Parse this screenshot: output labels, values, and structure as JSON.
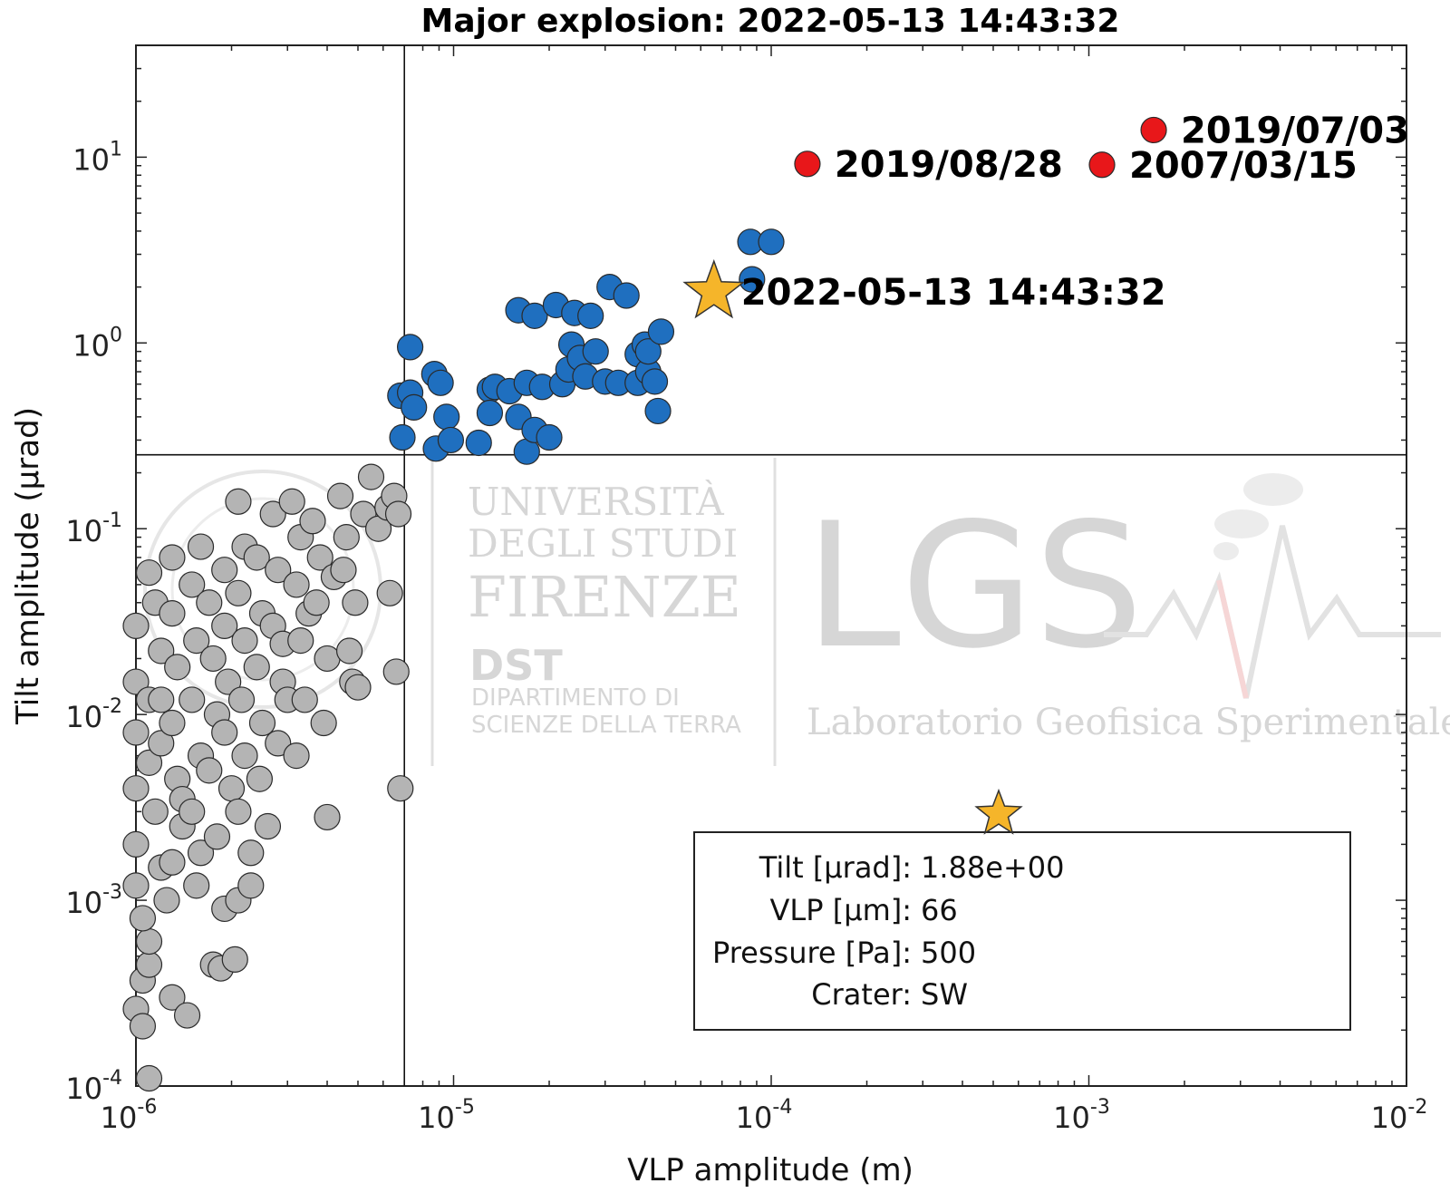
{
  "chart_data": {
    "type": "scatter",
    "title": "Major explosion: 2022-05-13 14:43:32",
    "xlabel": "VLP amplitude (m)",
    "ylabel": "Tilt amplitude (μrad)",
    "xscale": "log",
    "yscale": "log",
    "xlim": [
      1e-06,
      0.01
    ],
    "ylim": [
      0.0001,
      40
    ],
    "x_ticks": [
      {
        "base": "10",
        "exp": "-6",
        "value": 1e-06
      },
      {
        "base": "10",
        "exp": "-5",
        "value": 1e-05
      },
      {
        "base": "10",
        "exp": "-4",
        "value": 0.0001
      },
      {
        "base": "10",
        "exp": "-3",
        "value": 0.001
      },
      {
        "base": "10",
        "exp": "-2",
        "value": 0.01
      }
    ],
    "y_ticks": [
      {
        "base": "10",
        "exp": "-4",
        "value": 0.0001
      },
      {
        "base": "10",
        "exp": "-3",
        "value": 0.001
      },
      {
        "base": "10",
        "exp": "-2",
        "value": 0.01
      },
      {
        "base": "10",
        "exp": "-1",
        "value": 0.1
      },
      {
        "base": "10",
        "exp": "0",
        "value": 1
      },
      {
        "base": "10",
        "exp": "1",
        "value": 10
      }
    ],
    "thresholds": {
      "x": 7e-06,
      "y": 0.25
    },
    "colors": {
      "minor": "#b4b4b4",
      "major": "#1f6fbf",
      "paroxysm": "#e8171a",
      "star": "#f5b52a",
      "edge": "#2a2a2a"
    },
    "series": [
      {
        "color": "#b4b4b4",
        "points": [
          [
            1e-06,
            0.03
          ],
          [
            1e-06,
            0.015
          ],
          [
            1e-06,
            0.008
          ],
          [
            1e-06,
            0.004
          ],
          [
            1e-06,
            0.002
          ],
          [
            1e-06,
            0.0012
          ],
          [
            1e-06,
            0.00026
          ],
          [
            1.05e-06,
            0.00021
          ],
          [
            1.1e-06,
            0.00011
          ],
          [
            1.05e-06,
            0.00037
          ],
          [
            1.1e-06,
            0.00045
          ],
          [
            1.1e-06,
            0.0006
          ],
          [
            1.05e-06,
            0.0008
          ],
          [
            1.1e-06,
            0.0055
          ],
          [
            1.1e-06,
            0.058
          ],
          [
            1.15e-06,
            0.04
          ],
          [
            1.2e-06,
            0.022
          ],
          [
            1.1e-06,
            0.012
          ],
          [
            1.2e-06,
            0.007
          ],
          [
            1.15e-06,
            0.003
          ],
          [
            1.2e-06,
            0.0015
          ],
          [
            1.25e-06,
            0.001
          ],
          [
            1.2e-06,
            0.012
          ],
          [
            1.3e-06,
            0.07
          ],
          [
            1.3e-06,
            0.035
          ],
          [
            1.35e-06,
            0.018
          ],
          [
            1.3e-06,
            0.009
          ],
          [
            1.35e-06,
            0.0045
          ],
          [
            1.4e-06,
            0.0025
          ],
          [
            1.3e-06,
            0.0016
          ],
          [
            1.3e-06,
            0.0003
          ],
          [
            1.4e-06,
            0.0035
          ],
          [
            1.5e-06,
            0.05
          ],
          [
            1.55e-06,
            0.025
          ],
          [
            1.5e-06,
            0.012
          ],
          [
            1.6e-06,
            0.006
          ],
          [
            1.5e-06,
            0.003
          ],
          [
            1.6e-06,
            0.0018
          ],
          [
            1.55e-06,
            0.0012
          ],
          [
            1.45e-06,
            0.00024
          ],
          [
            1.6e-06,
            0.08
          ],
          [
            1.7e-06,
            0.04
          ],
          [
            1.75e-06,
            0.02
          ],
          [
            1.8e-06,
            0.01
          ],
          [
            1.7e-06,
            0.005
          ],
          [
            1.8e-06,
            0.0022
          ],
          [
            1.75e-06,
            0.00045
          ],
          [
            1.9e-06,
            0.06
          ],
          [
            1.9e-06,
            0.03
          ],
          [
            1.95e-06,
            0.015
          ],
          [
            1.9e-06,
            0.008
          ],
          [
            2e-06,
            0.004
          ],
          [
            1.9e-06,
            0.0009
          ],
          [
            1.85e-06,
            0.00043
          ],
          [
            2.1e-06,
            0.14
          ],
          [
            2.2e-06,
            0.08
          ],
          [
            2.1e-06,
            0.045
          ],
          [
            2.2e-06,
            0.025
          ],
          [
            2.15e-06,
            0.012
          ],
          [
            2.2e-06,
            0.006
          ],
          [
            2.1e-06,
            0.003
          ],
          [
            2.1e-06,
            0.001
          ],
          [
            2.05e-06,
            0.00048
          ],
          [
            2.3e-06,
            0.0012
          ],
          [
            2.4e-06,
            0.07
          ],
          [
            2.5e-06,
            0.035
          ],
          [
            2.4e-06,
            0.018
          ],
          [
            2.5e-06,
            0.009
          ],
          [
            2.45e-06,
            0.0045
          ],
          [
            2.6e-06,
            0.0025
          ],
          [
            2.3e-06,
            0.0018
          ],
          [
            2.7e-06,
            0.12
          ],
          [
            2.8e-06,
            0.06
          ],
          [
            2.7e-06,
            0.03
          ],
          [
            2.9e-06,
            0.015
          ],
          [
            2.8e-06,
            0.007
          ],
          [
            3e-06,
            0.012
          ],
          [
            2.9e-06,
            0.024
          ],
          [
            3.1e-06,
            0.14
          ],
          [
            3.3e-06,
            0.09
          ],
          [
            3.2e-06,
            0.05
          ],
          [
            3.3e-06,
            0.025
          ],
          [
            3.4e-06,
            0.012
          ],
          [
            3.2e-06,
            0.006
          ],
          [
            3.5e-06,
            0.035
          ],
          [
            3.6e-06,
            0.11
          ],
          [
            3.8e-06,
            0.07
          ],
          [
            3.7e-06,
            0.04
          ],
          [
            4e-06,
            0.02
          ],
          [
            3.9e-06,
            0.009
          ],
          [
            4e-06,
            0.0028
          ],
          [
            4.2e-06,
            0.055
          ],
          [
            4.4e-06,
            0.15
          ],
          [
            4.6e-06,
            0.09
          ],
          [
            4.5e-06,
            0.06
          ],
          [
            4.7e-06,
            0.022
          ],
          [
            4.8e-06,
            0.015
          ],
          [
            5e-06,
            0.014
          ],
          [
            4.9e-06,
            0.04
          ],
          [
            5.5e-06,
            0.19
          ],
          [
            5.2e-06,
            0.12
          ],
          [
            5.8e-06,
            0.1
          ],
          [
            6.2e-06,
            0.13
          ],
          [
            6.5e-06,
            0.15
          ],
          [
            6.7e-06,
            0.12
          ],
          [
            6.3e-06,
            0.045
          ],
          [
            6.6e-06,
            0.017
          ],
          [
            6.8e-06,
            0.004
          ]
        ]
      },
      {
        "color": "#1f6fbf",
        "points": [
          [
            6.8e-06,
            0.52
          ],
          [
            6.9e-06,
            0.31
          ],
          [
            7.3e-06,
            0.95
          ],
          [
            7.3e-06,
            0.54
          ],
          [
            7.5e-06,
            0.45
          ],
          [
            8.7e-06,
            0.68
          ],
          [
            8.8e-06,
            0.27
          ],
          [
            9.1e-06,
            0.61
          ],
          [
            9.5e-06,
            0.4
          ],
          [
            9.8e-06,
            0.3
          ],
          [
            1.2e-05,
            0.29
          ],
          [
            1.3e-05,
            0.56
          ],
          [
            1.3e-05,
            0.42
          ],
          [
            1.35e-05,
            0.58
          ],
          [
            1.5e-05,
            0.55
          ],
          [
            1.6e-05,
            0.4
          ],
          [
            1.6e-05,
            1.5
          ],
          [
            1.7e-05,
            0.61
          ],
          [
            1.7e-05,
            0.26
          ],
          [
            1.8e-05,
            1.4
          ],
          [
            1.8e-05,
            0.34
          ],
          [
            1.9e-05,
            0.58
          ],
          [
            2e-05,
            0.31
          ],
          [
            2.1e-05,
            1.6
          ],
          [
            2.2e-05,
            0.6
          ],
          [
            2.3e-05,
            0.72
          ],
          [
            2.35e-05,
            0.98
          ],
          [
            2.4e-05,
            1.45
          ],
          [
            2.5e-05,
            0.83
          ],
          [
            2.6e-05,
            0.66
          ],
          [
            2.7e-05,
            1.4
          ],
          [
            2.8e-05,
            0.9
          ],
          [
            3e-05,
            0.62
          ],
          [
            3.1e-05,
            2.0
          ],
          [
            3.3e-05,
            0.61
          ],
          [
            3.5e-05,
            1.8
          ],
          [
            3.8e-05,
            0.87
          ],
          [
            3.8e-05,
            0.61
          ],
          [
            4e-05,
            0.98
          ],
          [
            4.1e-05,
            0.7
          ],
          [
            4.1e-05,
            0.9
          ],
          [
            4.3e-05,
            0.62
          ],
          [
            4.4e-05,
            0.43
          ],
          [
            4.5e-05,
            1.15
          ],
          [
            8.6e-05,
            3.5
          ],
          [
            8.7e-05,
            2.2
          ],
          [
            0.0001,
            3.5
          ]
        ]
      },
      {
        "color": "#e8171a",
        "points": [
          [
            0.00013,
            9.2
          ],
          [
            0.0011,
            9.1
          ],
          [
            0.0016,
            14
          ]
        ]
      }
    ],
    "highlight": {
      "x": 6.6e-05,
      "y": 1.88
    },
    "annotations": [
      {
        "text": "2019/07/03",
        "x": 0.0016,
        "y": 14
      },
      {
        "text": "2019/08/28",
        "x": 0.00013,
        "y": 9.2
      },
      {
        "text": "2007/03/15",
        "x": 0.0011,
        "y": 9.1
      },
      {
        "text": "2022-05-13 14:43:32",
        "x": 6.6e-05,
        "y": 1.88
      }
    ],
    "info_box": [
      {
        "label": "Tilt [μrad]:",
        "value": "1.88e+00"
      },
      {
        "label": "VLP [μm]:",
        "value": "66"
      },
      {
        "label": "Pressure [Pa]:",
        "value": "500"
      },
      {
        "label": "Crater:",
        "value": "SW"
      }
    ]
  },
  "watermark": {
    "university": [
      "UNIVERSITÀ",
      "DEGLI STUDI",
      "FIRENZE"
    ],
    "dept_short": "DST",
    "dept": [
      "DIPARTIMENTO DI",
      "SCIENZE DELLA TERRA"
    ],
    "lab_short": "LGS",
    "lab": "Laboratorio Geofisica Sperimentale"
  }
}
